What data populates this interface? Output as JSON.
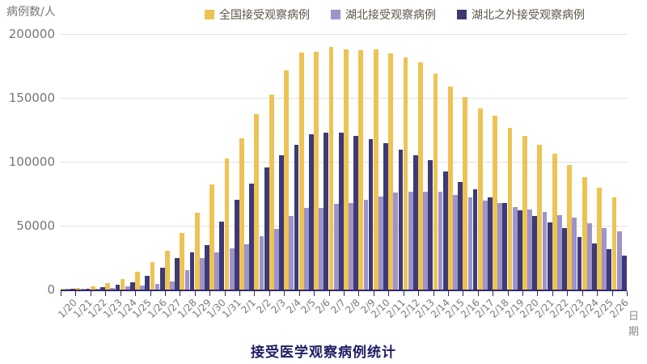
{
  "title": "接受医学观察病例统计",
  "chart_data": {
    "type": "bar",
    "title": "接受医学观察病例统计",
    "ylabel": "病例数/人",
    "xlabel": "日期",
    "ylim": [
      0,
      200000
    ],
    "yticks": [
      0,
      50000,
      100000,
      150000,
      200000
    ],
    "grid": true,
    "legend_position": "top",
    "categories": [
      "1/20",
      "1/21",
      "1/22",
      "1/23",
      "1/24",
      "1/25",
      "1/26",
      "1/27",
      "1/28",
      "1/29",
      "1/30",
      "1/31",
      "2/1",
      "2/2",
      "2/3",
      "2/4",
      "2/5",
      "2/6",
      "2/7",
      "2/8",
      "2/9",
      "2/10",
      "2/11",
      "2/12",
      "2/13",
      "2/14",
      "2/15",
      "2/16",
      "2/17",
      "2/18",
      "2/19",
      "2/20",
      "2/21",
      "2/22",
      "2/23",
      "2/24",
      "2/25",
      "2/26"
    ],
    "series": [
      {
        "name": "全国接受观察病例",
        "color": "#edc355",
        "values": [
          400,
          1000,
          2800,
          4900,
          8400,
          14000,
          21600,
          30500,
          44100,
          60000,
          82000,
          102400,
          118500,
          137600,
          152700,
          171300,
          185600,
          186400,
          189700,
          188200,
          187500,
          187700,
          185000,
          181400,
          178000,
          169000,
          158600,
          150500,
          141600,
          135900,
          126400,
          120300,
          113600,
          106100,
          97500,
          88000,
          80000,
          72000
        ]
      },
      {
        "name": "湖北接受观察病例",
        "color": "#9c94cb",
        "values": [
          100,
          300,
          700,
          1200,
          2400,
          3400,
          4600,
          6100,
          15000,
          25000,
          29000,
          32000,
          35600,
          42000,
          47300,
          57800,
          64200,
          63700,
          67000,
          68000,
          70000,
          73000,
          75700,
          76400,
          76800,
          76400,
          74200,
          72200,
          69400,
          67900,
          64500,
          62500,
          61000,
          58200,
          56500,
          52000,
          48300,
          45500
        ]
      },
      {
        "name": "湖北之外接受观察病例",
        "color": "#3d3a75",
        "values": [
          300,
          700,
          2100,
          3700,
          6000,
          10600,
          17000,
          24400,
          29100,
          35000,
          53000,
          70400,
          82900,
          95600,
          105400,
          113500,
          121400,
          122700,
          122700,
          120200,
          117500,
          114700,
          109300,
          105000,
          101200,
          92600,
          84400,
          78300,
          72200,
          68000,
          61900,
          57800,
          52600,
          47900,
          41000,
          36000,
          31700,
          26500
        ]
      }
    ]
  },
  "colors": {
    "axis": "#2f2b66",
    "gridline": "#e2e2e2",
    "tick_text": "#767676",
    "title_text": "#201d63"
  }
}
